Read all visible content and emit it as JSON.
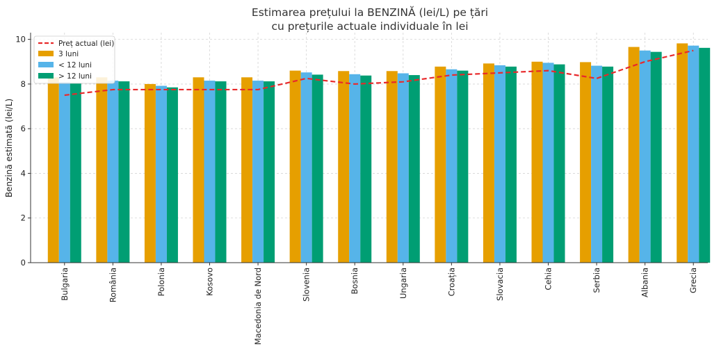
{
  "chart_data": {
    "type": "bar",
    "title_line1": "Estimarea prețului la BENZINĂ (lei/L) pe țări",
    "title_line2": "cu prețurile actuale individuale în lei",
    "xlabel": "",
    "ylabel": "Benzină estimată (lei/L)",
    "ylim": [
      0,
      10.3
    ],
    "yticks": [
      0,
      2,
      4,
      6,
      8,
      10
    ],
    "grid": true,
    "legend_position": "top-left",
    "categories": [
      "Bulgaria",
      "România",
      "Polonia",
      "Kosovo",
      "Macedonia de Nord",
      "Slovenia",
      "Bosnia",
      "Ungaria",
      "Croația",
      "Slovacia",
      "Cehia",
      "Serbia",
      "Albania",
      "Grecia"
    ],
    "series": [
      {
        "name": "3 luni",
        "color": "#E69F00",
        "values": [
          8.3,
          8.3,
          8.0,
          8.3,
          8.3,
          8.6,
          8.58,
          8.58,
          8.78,
          8.92,
          9.0,
          8.98,
          9.66,
          9.82
        ]
      },
      {
        "name": "< 12 luni",
        "color": "#56B4E9",
        "values": [
          8.08,
          8.15,
          7.92,
          8.15,
          8.15,
          8.52,
          8.44,
          8.48,
          8.66,
          8.84,
          8.95,
          8.82,
          9.5,
          9.72
        ]
      },
      {
        "name": "> 12 luni",
        "color": "#009E73",
        "values": [
          8.05,
          8.12,
          7.85,
          8.12,
          8.12,
          8.42,
          8.38,
          8.4,
          8.6,
          8.78,
          8.88,
          8.78,
          9.44,
          9.62
        ]
      }
    ],
    "line": {
      "name": "Preț actual (lei)",
      "color": "#E8292B",
      "style": "dashed",
      "values": [
        7.5,
        7.75,
        7.75,
        7.75,
        7.75,
        8.25,
        8.0,
        8.1,
        8.4,
        8.5,
        8.6,
        8.25,
        9.0,
        9.5
      ]
    }
  }
}
